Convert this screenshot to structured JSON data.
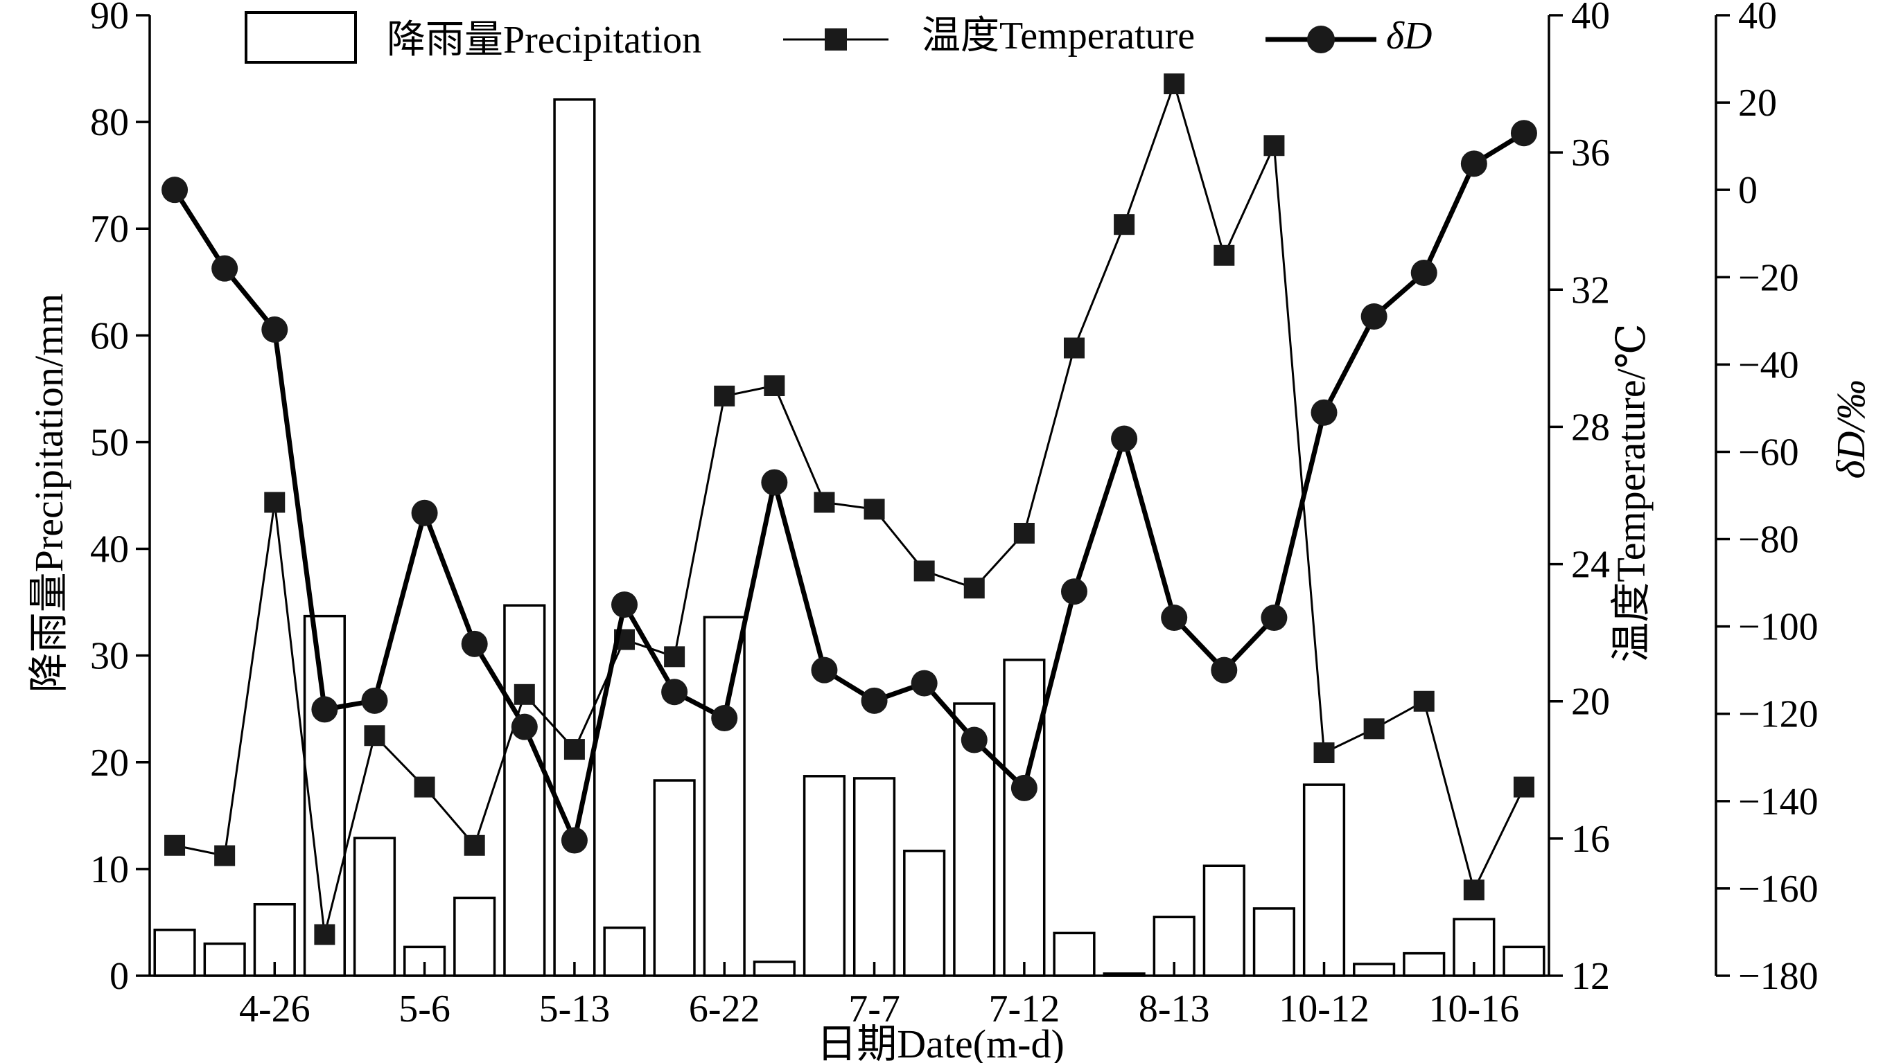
{
  "chart_data": {
    "type": "bar+line",
    "title": "",
    "xlabel": "日期Date(m-d)",
    "ylabel_left": "降雨量Precipitation/mm",
    "ylabel_right1": "温度Temperature/℃",
    "ylabel_right2": "δD/‰",
    "x_tick_labels": [
      "4-26",
      "5-6",
      "5-13",
      "6-22",
      "7-7",
      "7-12",
      "8-13",
      "10-12",
      "10-16"
    ],
    "ylim_left": [
      0,
      90
    ],
    "yticks_left": [
      0,
      10,
      20,
      30,
      40,
      50,
      60,
      70,
      80,
      90
    ],
    "ylim_right1": [
      12,
      40
    ],
    "yticks_right1": [
      12,
      16,
      20,
      24,
      28,
      32,
      36,
      40
    ],
    "ylim_right2": [
      -180,
      40
    ],
    "yticks_right2": [
      -180,
      -160,
      -140,
      -120,
      -100,
      -80,
      -60,
      -40,
      -20,
      0,
      20,
      40
    ],
    "legend": {
      "placement": "top",
      "entries": [
        "降雨量Precipitation",
        "温度Temperature",
        "δD"
      ]
    },
    "grid": false,
    "n_samples": 28,
    "series": [
      {
        "name": "降雨量Precipitation",
        "type": "bar",
        "axis": "left",
        "values": [
          4.3,
          3.0,
          6.7,
          33.7,
          12.9,
          2.7,
          7.3,
          34.7,
          82.1,
          4.5,
          18.3,
          33.6,
          1.3,
          18.7,
          18.5,
          11.7,
          25.5,
          29.6,
          4.0,
          0.2,
          5.5,
          10.3,
          6.3,
          17.9,
          1.1,
          2.1,
          5.3,
          2.7
        ],
        "color": "#ffffff"
      },
      {
        "name": "温度Temperature",
        "type": "line",
        "marker": "square",
        "axis": "right1",
        "values": [
          15.8,
          15.5,
          25.8,
          13.2,
          19.0,
          17.5,
          15.8,
          20.2,
          18.6,
          21.8,
          21.3,
          28.9,
          29.2,
          25.8,
          25.6,
          23.8,
          23.3,
          24.9,
          30.3,
          33.9,
          38.0,
          33.0,
          36.2,
          18.5,
          19.2,
          20.0,
          14.5,
          17.5
        ],
        "color": "#000000"
      },
      {
        "name": "δD",
        "type": "line",
        "marker": "circle",
        "axis": "right2",
        "values": [
          0,
          -18,
          -32,
          -119,
          -117,
          -74,
          -104,
          -123,
          -149,
          -95,
          -115,
          -121,
          -67,
          -110,
          -117,
          -113,
          -126,
          -137,
          -92,
          -57,
          -98,
          -110,
          -98,
          -51,
          -29,
          -19,
          6,
          13
        ],
        "color": "#000000"
      }
    ]
  }
}
